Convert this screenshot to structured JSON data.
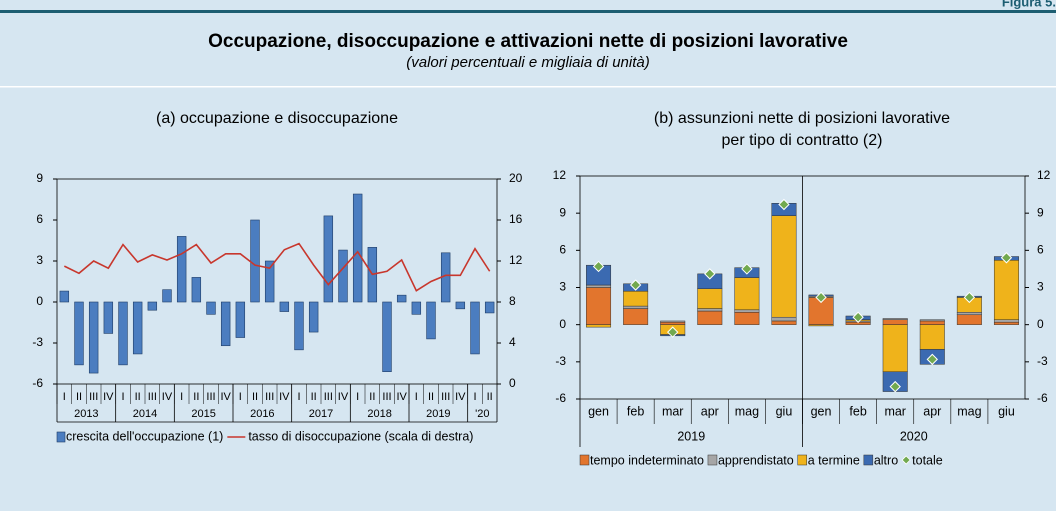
{
  "header": {
    "figure": "Figura 5.",
    "title": "Occupazione, disoccupazione e attivazioni nette di posizioni lavorative",
    "subtitle": "(valori percentuali e migliaia di unità)"
  },
  "chart_data": [
    {
      "type": "bar",
      "title": "(a) occupazione e disoccupazione",
      "categories": [
        "I",
        "II",
        "III",
        "IV",
        "I",
        "II",
        "III",
        "IV",
        "I",
        "II",
        "III",
        "IV",
        "I",
        "II",
        "III",
        "IV",
        "I",
        "II",
        "III",
        "IV",
        "I",
        "II",
        "III",
        "IV",
        "I",
        "II",
        "III",
        "IV",
        "I",
        "II"
      ],
      "years": [
        "2013",
        "2014",
        "2015",
        "2016",
        "2017",
        "2018",
        "2019",
        "'20"
      ],
      "ylim": [
        -6,
        9
      ],
      "yticks": [
        -6,
        -3,
        0,
        3,
        6,
        9
      ],
      "y2lim": [
        0,
        20
      ],
      "y2ticks": [
        0,
        4,
        8,
        12,
        16,
        20
      ],
      "series": [
        {
          "name": "crescita dell'occupazione (1)",
          "color": "#4b7dc0",
          "values": [
            0.8,
            -4.6,
            -5.2,
            -2.3,
            -4.6,
            -3.8,
            -0.6,
            0.9,
            4.8,
            1.8,
            -0.9,
            -3.2,
            -2.6,
            6.0,
            3.0,
            -0.7,
            -3.5,
            -2.2,
            6.3,
            3.8,
            7.9,
            4.0,
            -5.1,
            0.5,
            -0.9,
            -2.7,
            3.6,
            -0.5,
            -3.8,
            -0.8
          ]
        },
        {
          "name": "tasso di disoccupazione (scala di destra)",
          "color": "#c8372d",
          "axis": "y2",
          "values": [
            11.5,
            10.8,
            12.0,
            11.3,
            13.6,
            11.9,
            12.6,
            12.1,
            12.7,
            13.6,
            11.8,
            12.7,
            12.7,
            11.6,
            11.3,
            13.1,
            13.7,
            11.6,
            9.7,
            11.3,
            12.9,
            10.7,
            11.0,
            12.1,
            9.1,
            10.0,
            10.6,
            10.6,
            13.2,
            11.0
          ]
        }
      ]
    },
    {
      "type": "stacked_bar",
      "title": [
        "(b) assunzioni nette di posizioni lavorative",
        "per tipo di contratto (2)"
      ],
      "categories": [
        "gen",
        "feb",
        "mar",
        "apr",
        "mag",
        "giu",
        "gen",
        "feb",
        "mar",
        "apr",
        "mag",
        "giu"
      ],
      "years": [
        "2019",
        "2020"
      ],
      "ylim": [
        -6,
        12
      ],
      "yticks": [
        -6,
        -3,
        0,
        3,
        6,
        9,
        12
      ],
      "y2lim": [
        -6,
        12
      ],
      "y2ticks": [
        -6,
        -3,
        0,
        3,
        6,
        9,
        12
      ],
      "series": [
        {
          "name": "tempo indeterminato",
          "color": "#e2752d",
          "values": [
            3.0,
            1.3,
            0.2,
            1.1,
            1.0,
            0.3,
            2.2,
            0.2,
            0.4,
            0.3,
            0.8,
            0.2
          ]
        },
        {
          "name": "apprendistato",
          "color": "#a6a6a6",
          "values": [
            0.2,
            0.2,
            0.1,
            0.2,
            0.2,
            0.3,
            0.1,
            0.1,
            0.1,
            0.1,
            0.2,
            0.2
          ]
        },
        {
          "name": "a termine",
          "color": "#efb31b",
          "values": [
            -0.2,
            1.2,
            -0.8,
            1.6,
            2.6,
            8.2,
            -0.1,
            0.1,
            -3.8,
            -2.0,
            1.2,
            4.8
          ]
        },
        {
          "name": "altro",
          "color": "#3b6ab1",
          "values": [
            1.6,
            0.6,
            -0.1,
            1.2,
            0.8,
            1.0,
            0.1,
            0.3,
            -1.6,
            -1.2,
            0.1,
            0.3
          ]
        },
        {
          "name": "totale",
          "color": "#72a94f",
          "style": "point",
          "values": [
            4.7,
            3.2,
            -0.6,
            4.1,
            4.5,
            9.7,
            2.2,
            0.6,
            -5.0,
            -2.8,
            2.2,
            5.4
          ]
        }
      ]
    }
  ]
}
